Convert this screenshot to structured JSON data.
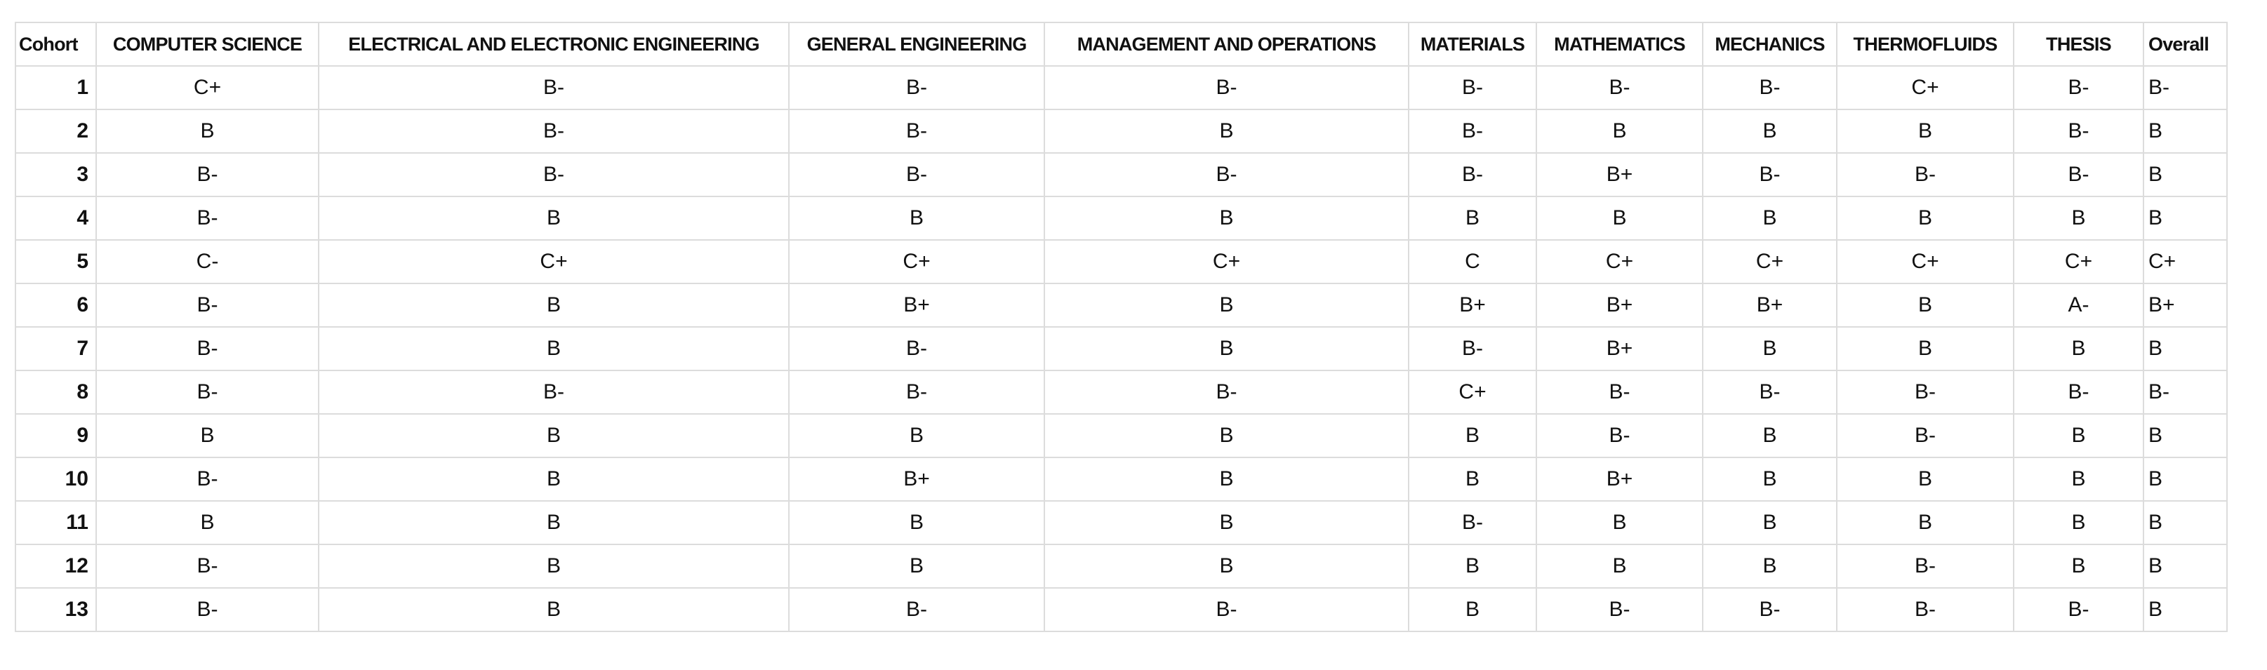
{
  "table": {
    "columns": [
      "Cohort",
      "COMPUTER SCIENCE",
      "ELECTRICAL AND ELECTRONIC ENGINEERING",
      "GENERAL ENGINEERING",
      "MANAGEMENT AND OPERATIONS",
      "MATERIALS",
      "MATHEMATICS",
      "MECHANICS",
      "THERMOFLUIDS",
      "THESIS",
      "Overall"
    ],
    "rows": [
      [
        1,
        "C+",
        "B-",
        "B-",
        "B-",
        "B-",
        "B-",
        "B-",
        "C+",
        "B-",
        "B-"
      ],
      [
        2,
        "B",
        "B-",
        "B-",
        "B",
        "B-",
        "B",
        "B",
        "B",
        "B-",
        "B"
      ],
      [
        3,
        "B-",
        "B-",
        "B-",
        "B-",
        "B-",
        "B+",
        "B-",
        "B-",
        "B-",
        "B"
      ],
      [
        4,
        "B-",
        "B",
        "B",
        "B",
        "B",
        "B",
        "B",
        "B",
        "B",
        "B"
      ],
      [
        5,
        "C-",
        "C+",
        "C+",
        "C+",
        "C",
        "C+",
        "C+",
        "C+",
        "C+",
        "C+"
      ],
      [
        6,
        "B-",
        "B",
        "B+",
        "B",
        "B+",
        "B+",
        "B+",
        "B",
        "A-",
        "B+"
      ],
      [
        7,
        "B-",
        "B",
        "B-",
        "B",
        "B-",
        "B+",
        "B",
        "B",
        "B",
        "B"
      ],
      [
        8,
        "B-",
        "B-",
        "B-",
        "B-",
        "C+",
        "B-",
        "B-",
        "B-",
        "B-",
        "B-"
      ],
      [
        9,
        "B",
        "B",
        "B",
        "B",
        "B",
        "B-",
        "B",
        "B-",
        "B",
        "B"
      ],
      [
        10,
        "B-",
        "B",
        "B+",
        "B",
        "B",
        "B+",
        "B",
        "B",
        "B",
        "B"
      ],
      [
        11,
        "B",
        "B",
        "B",
        "B",
        "B-",
        "B",
        "B",
        "B",
        "B",
        "B"
      ],
      [
        12,
        "B-",
        "B",
        "B",
        "B",
        "B",
        "B",
        "B",
        "B-",
        "B",
        "B"
      ],
      [
        13,
        "B-",
        "B",
        "B-",
        "B-",
        "B",
        "B-",
        "B-",
        "B-",
        "B-",
        "B"
      ]
    ]
  }
}
